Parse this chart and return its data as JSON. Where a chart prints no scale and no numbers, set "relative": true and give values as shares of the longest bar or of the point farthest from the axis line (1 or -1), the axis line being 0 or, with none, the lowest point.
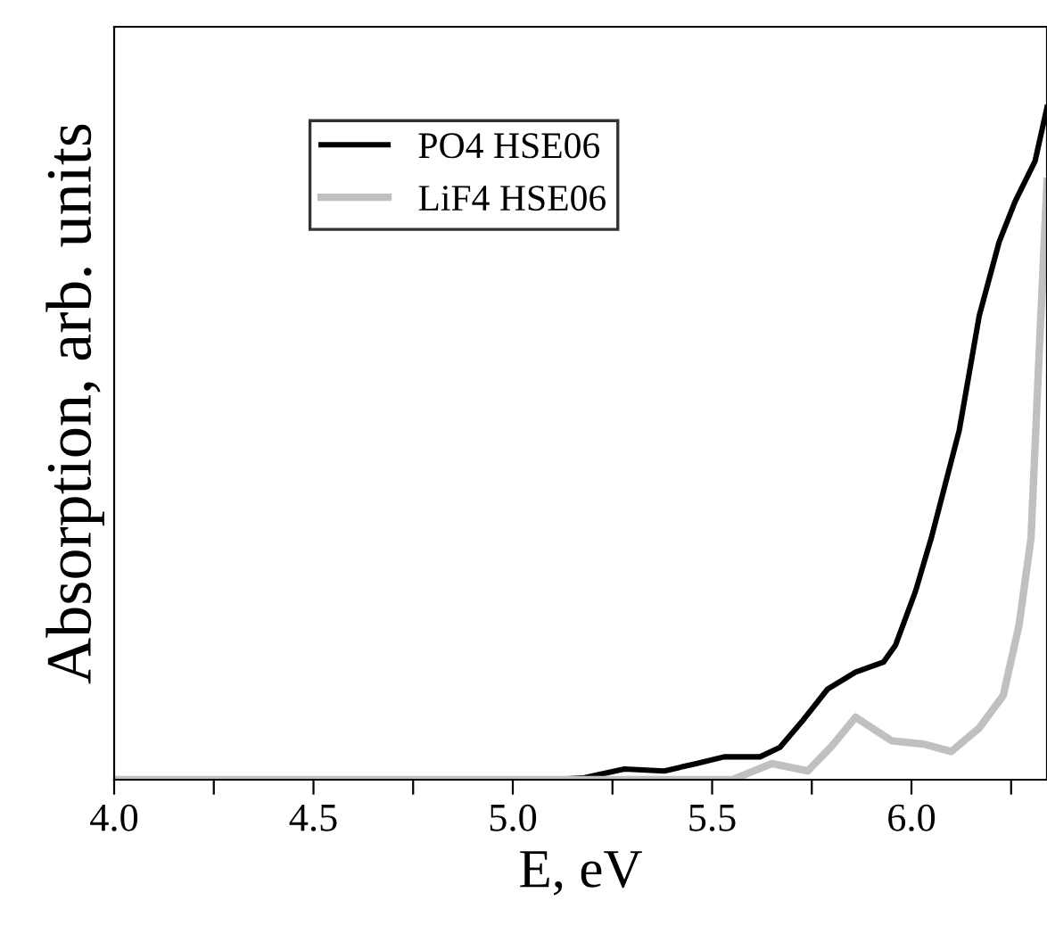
{
  "chart_data": {
    "type": "line",
    "relative": true,
    "xlabel": "E, eV",
    "ylabel": "Absorption, arb. units",
    "xlim": [
      4.0,
      6.34
    ],
    "xticks": [
      {
        "value": 4.0,
        "label": "4.0"
      },
      {
        "value": 4.25,
        "label": null
      },
      {
        "value": 4.5,
        "label": "4.5"
      },
      {
        "value": 4.75,
        "label": null
      },
      {
        "value": 5.0,
        "label": "5.0"
      },
      {
        "value": 5.25,
        "label": null
      },
      {
        "value": 5.5,
        "label": "5.5"
      },
      {
        "value": 5.75,
        "label": null
      },
      {
        "value": 6.0,
        "label": "6.0"
      },
      {
        "value": 6.25,
        "label": null
      }
    ],
    "tick_labels": "x",
    "legend": "top left",
    "grid": false,
    "marker": "none",
    "line_style": "solid",
    "series": [
      {
        "name": "PO4 HSE06",
        "color": "#000000",
        "x": [
          4.0,
          5.1,
          5.18,
          5.28,
          5.38,
          5.46,
          5.53,
          5.62,
          5.67,
          5.73,
          5.79,
          5.86,
          5.93,
          5.96,
          6.01,
          6.05,
          6.12,
          6.17,
          6.22,
          6.26,
          6.31,
          6.34
        ],
        "values": [
          0,
          0,
          0.003,
          0.016,
          0.013,
          0.024,
          0.034,
          0.034,
          0.048,
          0.09,
          0.135,
          0.16,
          0.175,
          0.2,
          0.28,
          0.36,
          0.52,
          0.69,
          0.8,
          0.86,
          0.92,
          1.0
        ]
      },
      {
        "name": "LiF4 HSE06",
        "color": "#c0c0c0",
        "x": [
          4.0,
          5.46,
          5.55,
          5.65,
          5.74,
          5.8,
          5.86,
          5.95,
          6.03,
          6.1,
          6.17,
          6.23,
          6.27,
          6.3,
          6.32,
          6.34
        ],
        "values": [
          0,
          0,
          0,
          0.024,
          0.013,
          0.05,
          0.093,
          0.058,
          0.053,
          0.042,
          0.077,
          0.125,
          0.23,
          0.36,
          0.63,
          0.89
        ]
      }
    ]
  }
}
